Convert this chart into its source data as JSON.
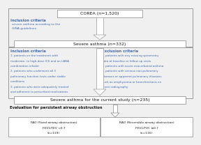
{
  "bg_color": "#f0f0f0",
  "box_color": "#ffffff",
  "border_color": "#999999",
  "blue_text": "#4169b0",
  "black_text": "#1a1a1a",
  "top_box_text": "COREA (n=1,520)",
  "inc1_title": "Inclusion criteria",
  "inc1_lines": [
    "severe asthma according to the",
    "GINA guidelines"
  ],
  "severe1_text": "Severe asthma (n=332)",
  "inc2_title": "Inclusion criteria",
  "inc2_lines": [
    "1. patients on the treatment with",
    "moderate- to high-dose ICS and an LABA",
    "combination inhaler",
    "2. patients who underwent all 3",
    "pulmonary function tests under stable",
    "conditions",
    "3. patients who were adequately treated",
    "and adherent to prescribed medications"
  ],
  "exc2_title": "Exclusion criteria",
  "exc2_lines": [
    "1. patients with any missing spirometry",
    "data at baseline or follow up visits",
    "2. patients with acute exacerbated asthma",
    "3. patients with serious non-pulmonary",
    "diseases or apparent pulmonary diseases",
    "such as emphysema or bronchiectasis on",
    "chest radiography"
  ],
  "severe2_text": "Severe asthma for the current study (n=235)",
  "eval_text": "Evaluation for persistent airway obstruction",
  "fao_title": "FAO (Fixed airway obstruction)",
  "fao_line1": "FEV1/FEV <0.7",
  "fao_line2": "(n=119)",
  "rao_title": "RAO (Reversible airway obstruction)",
  "rao_line1": "FEV1/FVC ≥0.7",
  "rao_line2": "(n=116)"
}
